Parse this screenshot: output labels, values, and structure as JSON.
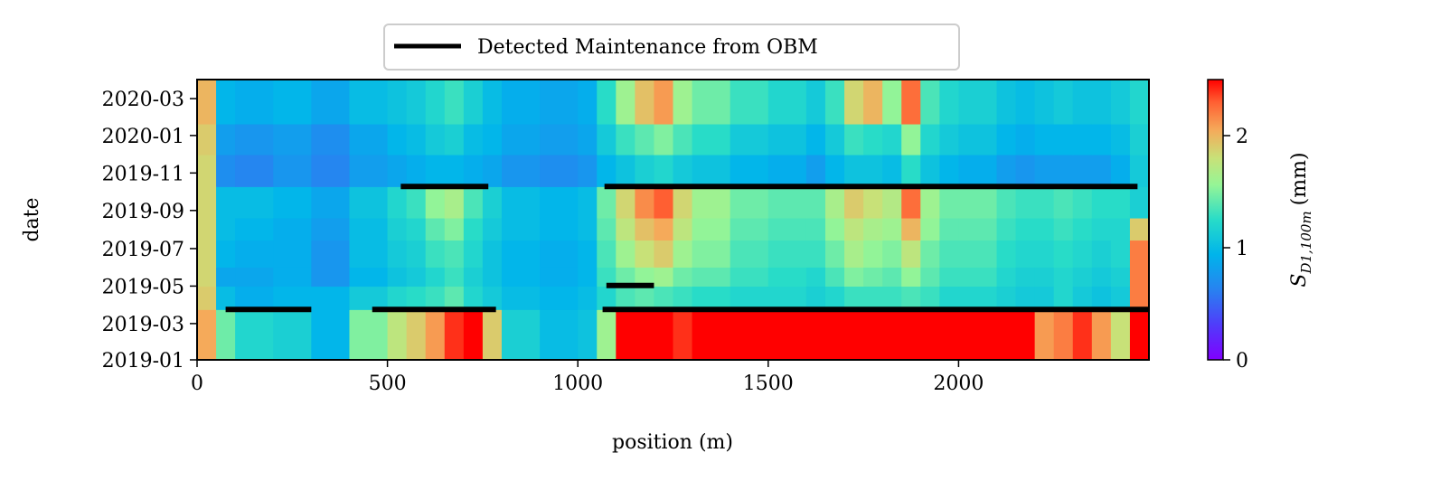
{
  "chart_data": {
    "type": "heatmap",
    "title": "",
    "xlabel": "position (m)",
    "ylabel": "date",
    "xlim": [
      0,
      2500
    ],
    "ylim": [
      "2019-01-01",
      "2020-04-01"
    ],
    "x_ticks": [
      0,
      500,
      1000,
      1500,
      2000
    ],
    "x_tick_labels": [
      "0",
      "500",
      "1000",
      "1500",
      "2000"
    ],
    "y_ticks": [
      "2019-01-01",
      "2019-03-01",
      "2019-05-01",
      "2019-07-01",
      "2019-09-01",
      "2019-11-01",
      "2020-01-01",
      "2020-03-01"
    ],
    "y_tick_labels": [
      "2019-01",
      "2019-03",
      "2019-05",
      "2019-07",
      "2019-09",
      "2019-11",
      "2020-01",
      "2020-03"
    ],
    "colormap": "rainbow",
    "colorbar": {
      "label_base": "S",
      "label_sub": "D1,100m",
      "label_unit": "(mm)",
      "range": [
        0,
        2.5
      ],
      "ticks": [
        0,
        1,
        2
      ],
      "tick_labels": [
        "0",
        "1",
        "2"
      ]
    },
    "legend": {
      "position": "top-center",
      "entries": [
        {
          "label": "Detected Maintenance from OBM",
          "color": "#000000"
        }
      ]
    },
    "maintenance_segments": [
      {
        "x_start": 75,
        "x_end": 300,
        "date": "2019-03-24"
      },
      {
        "x_start": 460,
        "x_end": 785,
        "date": "2019-03-24"
      },
      {
        "x_start": 1065,
        "x_end": 2500,
        "date": "2019-03-24"
      },
      {
        "x_start": 1075,
        "x_end": 1200,
        "date": "2019-05-02"
      },
      {
        "x_start": 535,
        "x_end": 765,
        "date": "2019-10-10"
      },
      {
        "x_start": 1070,
        "x_end": 2470,
        "date": "2019-10-10"
      }
    ],
    "heatmap": {
      "x_bins": [
        0,
        50,
        100,
        200,
        300,
        400,
        500,
        550,
        600,
        650,
        700,
        750,
        800,
        900,
        1000,
        1050,
        1100,
        1150,
        1200,
        1250,
        1300,
        1400,
        1500,
        1600,
        1650,
        1700,
        1750,
        1800,
        1850,
        1900,
        1950,
        2000,
        2100,
        2150,
        2200,
        2250,
        2300,
        2350,
        2400,
        2450,
        2500
      ],
      "y_bins": [
        "2019-01-01",
        "2019-03-24",
        "2019-05-01",
        "2019-06-01",
        "2019-07-15",
        "2019-08-20",
        "2019-10-10",
        "2019-12-01",
        "2020-01-20",
        "2020-04-01"
      ],
      "values": [
        [
          2.05,
          1.45,
          1.2,
          1.15,
          0.95,
          1.5,
          1.75,
          1.9,
          2.1,
          2.4,
          2.5,
          1.9,
          1.15,
          1.0,
          1.05,
          1.6,
          2.5,
          2.5,
          2.5,
          2.4,
          2.5,
          2.5,
          2.5,
          2.5,
          2.5,
          2.5,
          2.5,
          2.5,
          2.5,
          2.5,
          2.5,
          2.5,
          2.5,
          2.5,
          2.1,
          2.2,
          2.4,
          2.1,
          1.8,
          2.5
        ],
        [
          1.9,
          1.0,
          0.9,
          0.95,
          0.95,
          1.1,
          1.2,
          1.25,
          1.3,
          1.4,
          1.2,
          1.1,
          1.0,
          0.95,
          1.0,
          1.2,
          1.35,
          1.4,
          1.35,
          1.3,
          1.25,
          1.2,
          1.2,
          1.15,
          1.2,
          1.3,
          1.3,
          1.3,
          1.35,
          1.3,
          1.2,
          1.2,
          1.15,
          1.1,
          1.1,
          1.2,
          1.1,
          1.05,
          1.1,
          2.2
        ],
        [
          1.85,
          0.85,
          0.85,
          0.9,
          0.75,
          0.95,
          1.05,
          1.1,
          1.2,
          1.3,
          1.15,
          1.05,
          0.95,
          0.9,
          0.95,
          1.3,
          1.45,
          1.55,
          1.6,
          1.45,
          1.4,
          1.3,
          1.25,
          1.2,
          1.35,
          1.5,
          1.45,
          1.4,
          1.55,
          1.4,
          1.3,
          1.3,
          1.2,
          1.15,
          1.15,
          1.2,
          1.15,
          1.1,
          1.15,
          2.2
        ],
        [
          1.85,
          0.95,
          0.9,
          0.9,
          0.75,
          1.0,
          1.1,
          1.15,
          1.3,
          1.35,
          1.2,
          1.05,
          0.95,
          0.9,
          0.95,
          1.35,
          1.6,
          1.8,
          1.9,
          1.6,
          1.5,
          1.35,
          1.3,
          1.3,
          1.45,
          1.65,
          1.55,
          1.5,
          1.75,
          1.45,
          1.35,
          1.35,
          1.25,
          1.2,
          1.2,
          1.25,
          1.2,
          1.15,
          1.2,
          2.2
        ],
        [
          1.85,
          1.0,
          0.95,
          0.9,
          0.8,
          1.0,
          1.15,
          1.2,
          1.4,
          1.5,
          1.25,
          1.1,
          1.0,
          0.95,
          1.0,
          1.4,
          1.75,
          1.95,
          2.05,
          1.75,
          1.55,
          1.4,
          1.35,
          1.35,
          1.55,
          1.75,
          1.65,
          1.6,
          2.0,
          1.55,
          1.4,
          1.4,
          1.3,
          1.25,
          1.25,
          1.3,
          1.25,
          1.2,
          1.2,
          1.9
        ],
        [
          1.85,
          1.0,
          1.0,
          0.95,
          0.85,
          1.05,
          1.2,
          1.3,
          1.55,
          1.65,
          1.35,
          1.15,
          1.0,
          0.95,
          1.0,
          1.45,
          1.85,
          2.15,
          2.3,
          1.85,
          1.6,
          1.45,
          1.4,
          1.4,
          1.65,
          1.9,
          1.8,
          1.7,
          2.25,
          1.6,
          1.45,
          1.45,
          1.35,
          1.3,
          1.3,
          1.35,
          1.3,
          1.25,
          1.25,
          1.15
        ],
        [
          1.85,
          0.7,
          0.65,
          0.75,
          0.65,
          0.8,
          0.85,
          0.9,
          0.95,
          0.95,
          0.9,
          0.85,
          0.75,
          0.7,
          0.75,
          0.95,
          1.05,
          1.15,
          1.2,
          1.1,
          1.05,
          0.95,
          0.9,
          0.8,
          0.95,
          1.05,
          1.05,
          1.0,
          1.25,
          1.05,
          0.95,
          0.9,
          0.8,
          0.75,
          0.8,
          0.8,
          0.8,
          0.8,
          0.9,
          1.1
        ],
        [
          1.9,
          0.8,
          0.75,
          0.8,
          0.7,
          0.85,
          0.95,
          1.0,
          1.1,
          1.15,
          1.0,
          0.95,
          0.85,
          0.8,
          0.85,
          1.1,
          1.3,
          1.4,
          1.5,
          1.35,
          1.25,
          1.1,
          1.05,
          0.95,
          1.1,
          1.3,
          1.25,
          1.2,
          1.55,
          1.2,
          1.1,
          1.05,
          0.95,
          0.9,
          0.95,
          0.95,
          0.95,
          0.95,
          1.0,
          1.15
        ],
        [
          2.0,
          0.95,
          0.9,
          0.95,
          0.85,
          1.0,
          1.05,
          1.1,
          1.2,
          1.3,
          1.15,
          1.0,
          0.9,
          0.85,
          0.9,
          1.25,
          1.6,
          1.95,
          2.1,
          1.6,
          1.45,
          1.3,
          1.2,
          1.1,
          1.3,
          1.85,
          2.0,
          1.55,
          2.25,
          1.35,
          1.2,
          1.15,
          1.05,
          1.0,
          1.05,
          1.1,
          1.05,
          1.05,
          1.1,
          1.2
        ]
      ]
    }
  }
}
